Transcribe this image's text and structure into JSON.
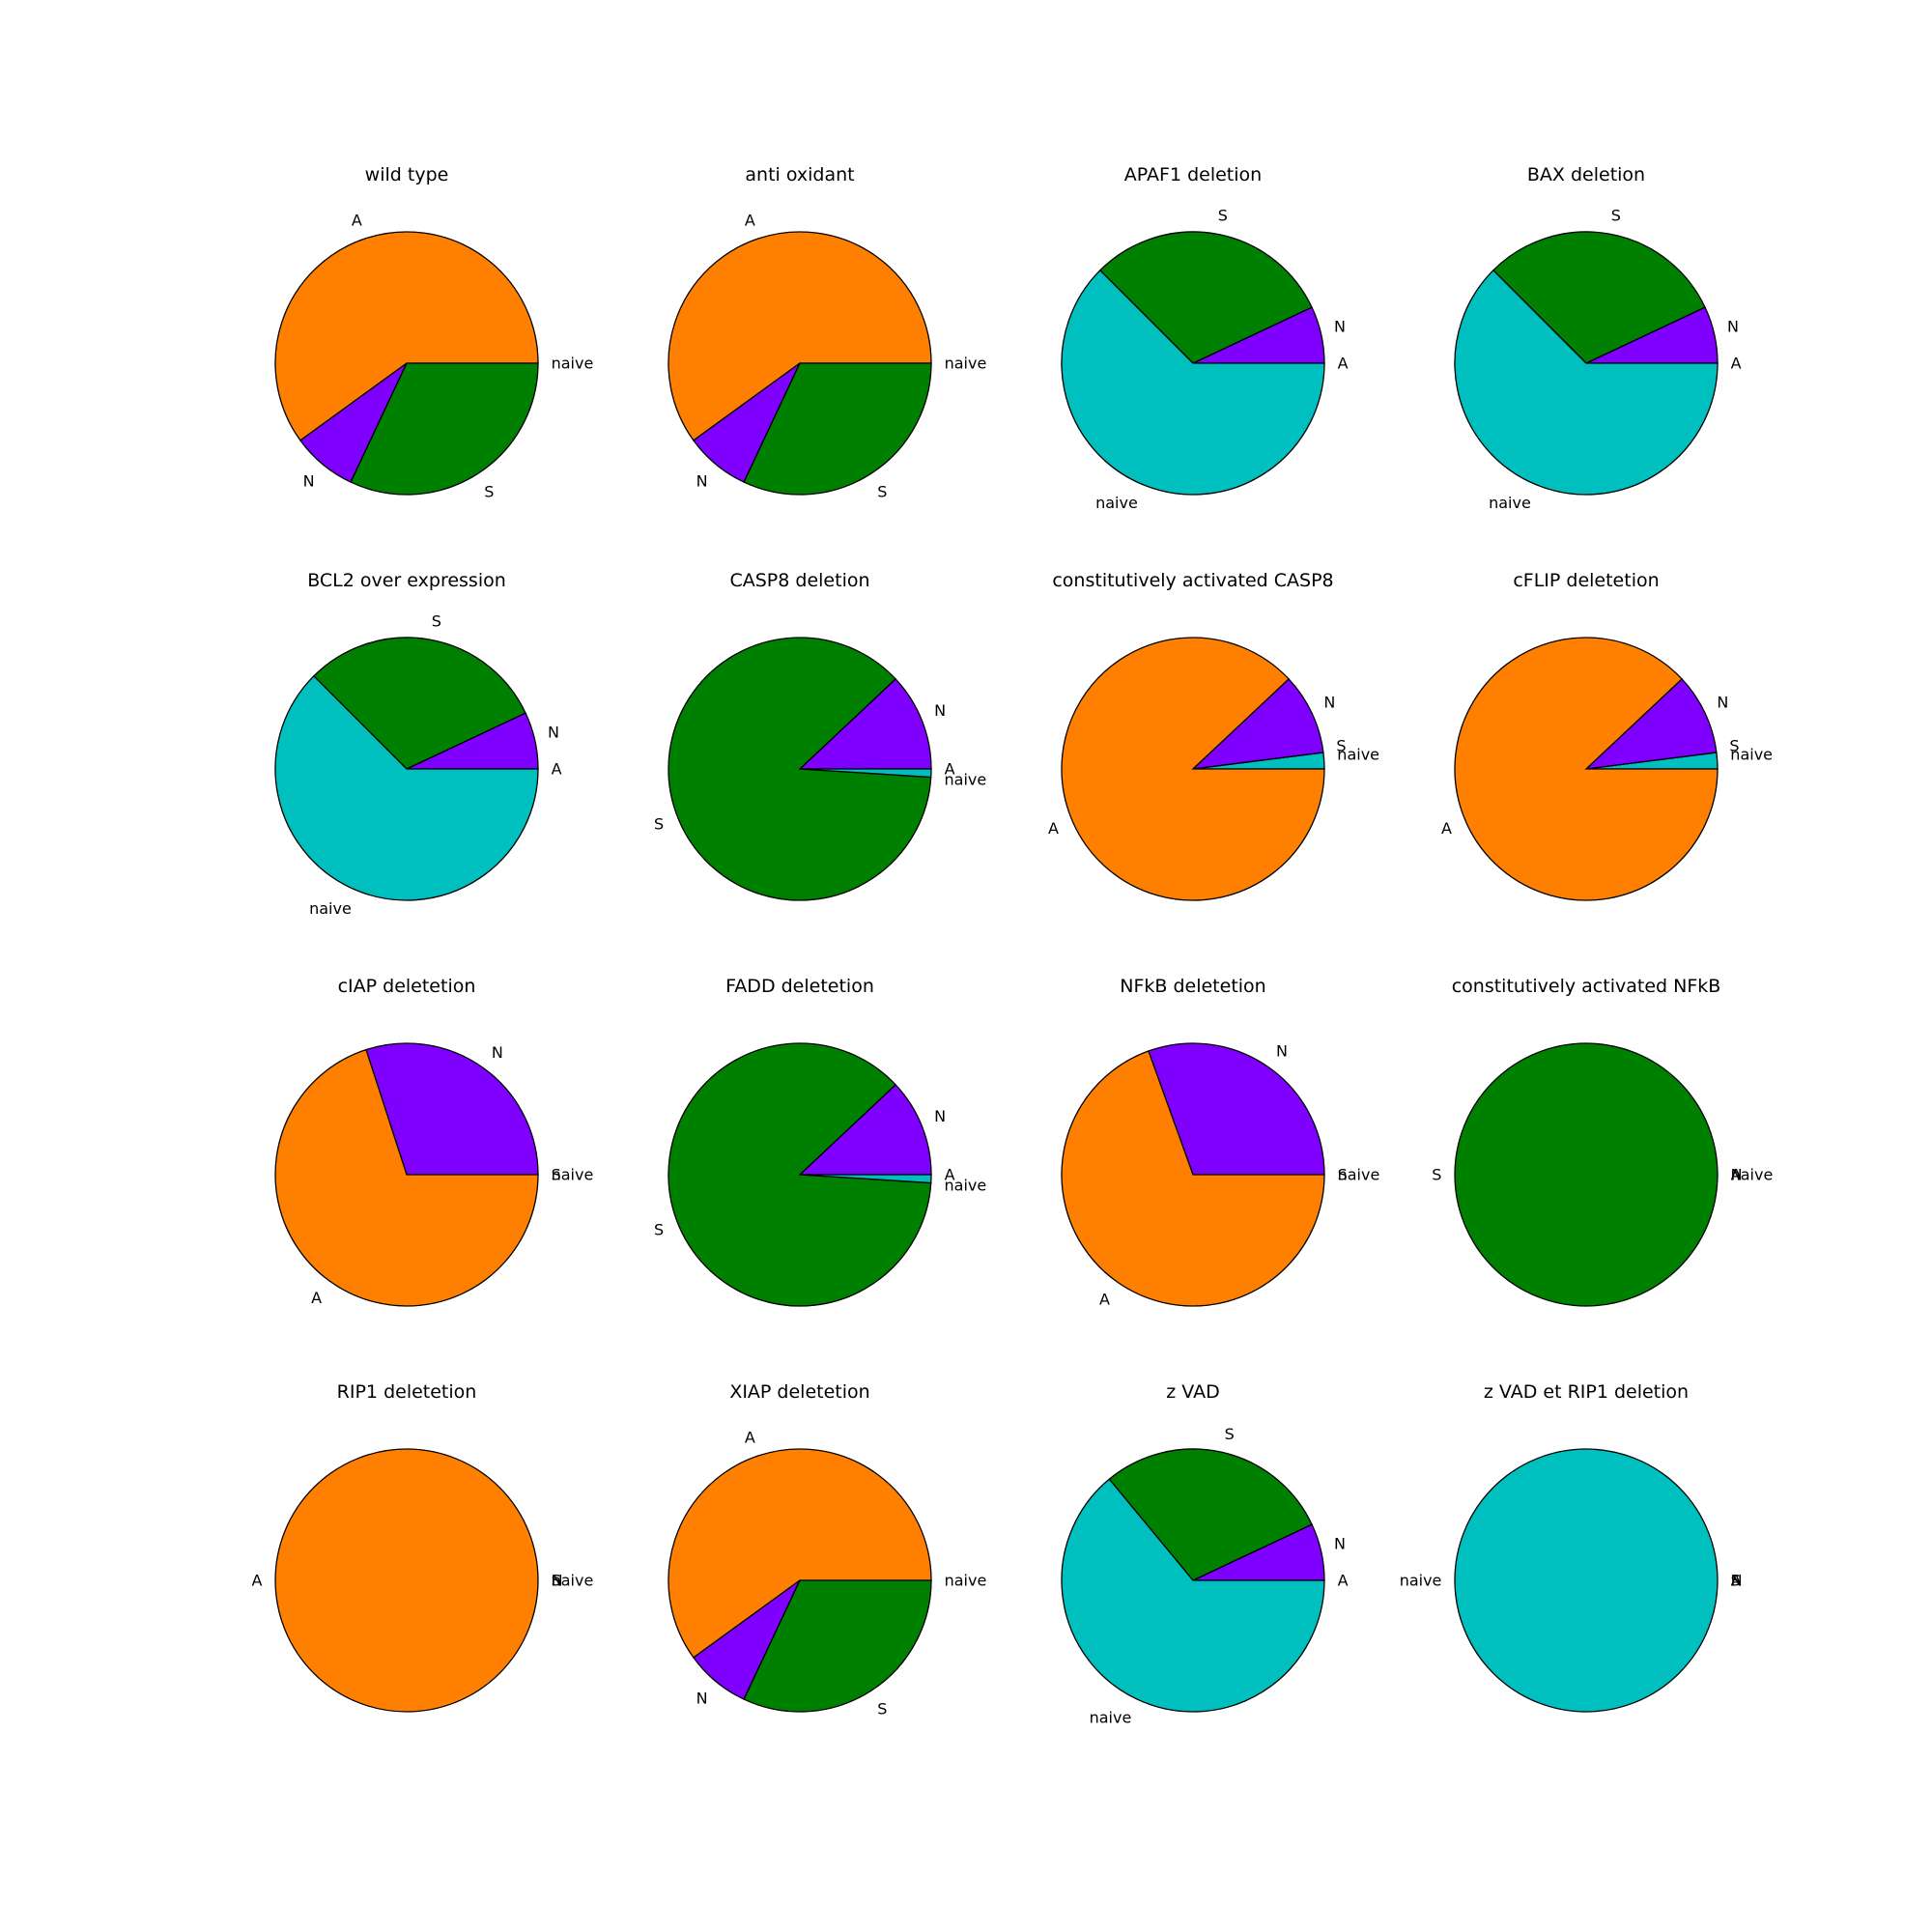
{
  "colors": {
    "A": "#ff8000",
    "N": "#8000ff",
    "S": "#008000",
    "naive": "#00bfbf"
  },
  "chart_data": [
    {
      "type": "pie",
      "title": "wild type",
      "labels": [
        "naive",
        "A",
        "N",
        "S"
      ],
      "values": [
        0,
        0.6,
        0.08,
        0.32
      ]
    },
    {
      "type": "pie",
      "title": "anti oxidant",
      "labels": [
        "naive",
        "A",
        "N",
        "S"
      ],
      "values": [
        0,
        0.6,
        0.08,
        0.32
      ]
    },
    {
      "type": "pie",
      "title": "APAF1 deletion",
      "labels": [
        "A",
        "N",
        "S",
        "naive"
      ],
      "values": [
        0,
        0.07,
        0.305,
        0.625
      ]
    },
    {
      "type": "pie",
      "title": "BAX deletion",
      "labels": [
        "A",
        "N",
        "S",
        "naive"
      ],
      "values": [
        0,
        0.07,
        0.305,
        0.625
      ]
    },
    {
      "type": "pie",
      "title": "BCL2 over expression",
      "labels": [
        "A",
        "N",
        "S",
        "naive"
      ],
      "values": [
        0,
        0.07,
        0.305,
        0.625
      ]
    },
    {
      "type": "pie",
      "title": "CASP8 deletion",
      "labels": [
        "A",
        "N",
        "S",
        "naive"
      ],
      "values": [
        0,
        0.12,
        0.87,
        0.01
      ]
    },
    {
      "type": "pie",
      "title": "constitutively activated CASP8",
      "labels": [
        "naive",
        "S",
        "N",
        "A"
      ],
      "values": [
        0.02,
        0,
        0.1,
        0.88
      ]
    },
    {
      "type": "pie",
      "title": "cFLIP deletetion",
      "labels": [
        "naive",
        "S",
        "N",
        "A"
      ],
      "values": [
        0.02,
        0,
        0.1,
        0.88
      ]
    },
    {
      "type": "pie",
      "title": "cIAP deletetion",
      "labels": [
        "naive",
        "S",
        "N",
        "A"
      ],
      "values": [
        0,
        0,
        0.3,
        0.7
      ]
    },
    {
      "type": "pie",
      "title": "FADD deletetion",
      "labels": [
        "A",
        "N",
        "S",
        "naive"
      ],
      "values": [
        0,
        0.12,
        0.87,
        0.01
      ]
    },
    {
      "type": "pie",
      "title": "NFkB deletetion",
      "labels": [
        "naive",
        "S",
        "N",
        "A"
      ],
      "values": [
        0,
        0,
        0.305,
        0.695
      ]
    },
    {
      "type": "pie",
      "title": "constitutively activated NFkB",
      "labels": [
        "naive",
        "A",
        "N",
        "S"
      ],
      "values": [
        0,
        0,
        0,
        1
      ]
    },
    {
      "type": "pie",
      "title": "RIP1 deletetion",
      "labels": [
        "naive",
        "N",
        "S",
        "A"
      ],
      "values": [
        0,
        0,
        0,
        1
      ]
    },
    {
      "type": "pie",
      "title": "XIAP deletetion",
      "labels": [
        "naive",
        "A",
        "N",
        "S"
      ],
      "values": [
        0,
        0.6,
        0.08,
        0.32
      ]
    },
    {
      "type": "pie",
      "title": "z VAD",
      "labels": [
        "A",
        "N",
        "S",
        "naive"
      ],
      "values": [
        0,
        0.07,
        0.29,
        0.64
      ]
    },
    {
      "type": "pie",
      "title": "z VAD et RIP1 deletion",
      "labels": [
        "A",
        "N",
        "S",
        "naive"
      ],
      "values": [
        0,
        0,
        0,
        1
      ]
    }
  ]
}
